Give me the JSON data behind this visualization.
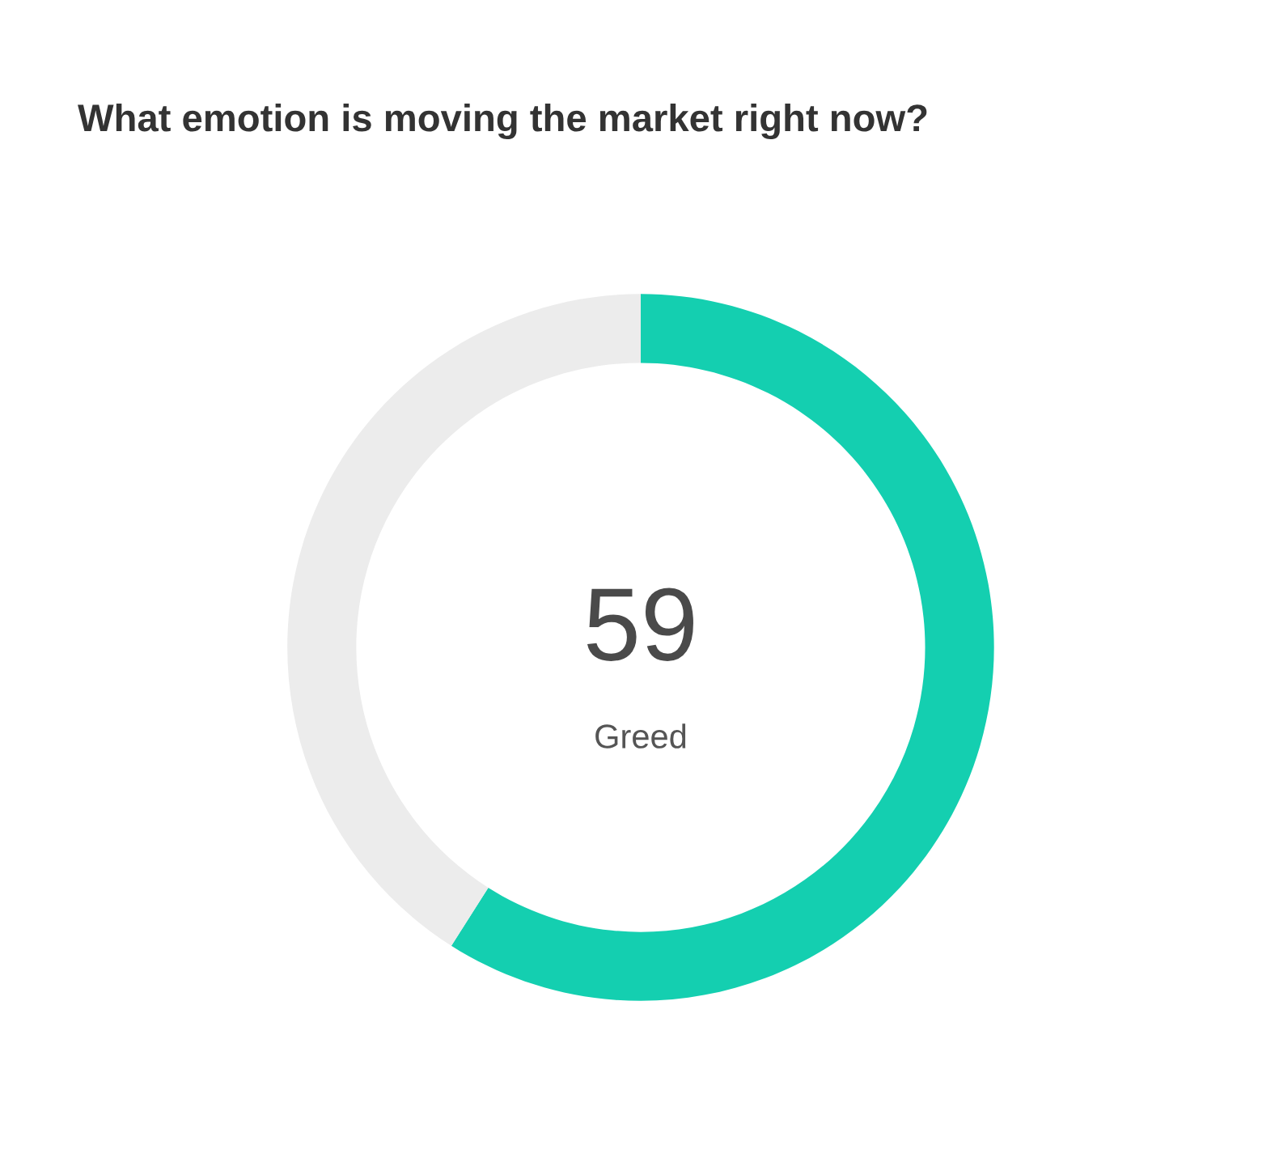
{
  "chart_data": {
    "type": "donut",
    "title": "What emotion is moving the market right now?",
    "categories": [
      "Greed",
      null
    ],
    "values": [
      59,
      41
    ],
    "colors": [
      "#14cfb0",
      "#ececec"
    ],
    "value_labels": [
      "59",
      null
    ]
  }
}
